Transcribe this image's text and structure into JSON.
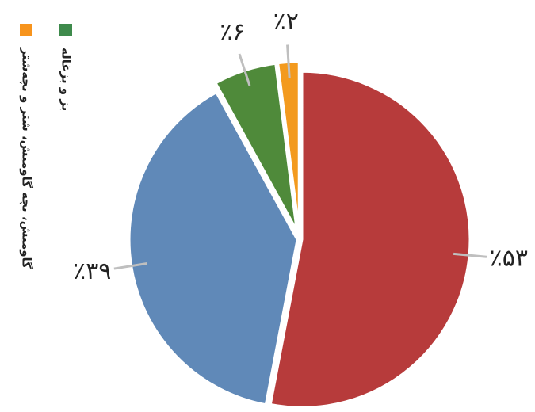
{
  "chart_data": {
    "type": "pie",
    "categories": [
      null,
      null,
      "بز و بزغاله",
      "گاومیش، بچه گاومیش، شتر و بچه‌شتر"
    ],
    "values": [
      53,
      39,
      6,
      2
    ],
    "value_labels": [
      "٪۵۳",
      "٪۳۹",
      "٪۶",
      "٪۲"
    ],
    "colors": [
      "#b73b3b",
      "#6089b8",
      "#4f8a3a",
      "#f39a1e"
    ],
    "legend_colors": [
      null,
      null,
      "#3e8a4c",
      "#f7941d"
    ],
    "exploded": [
      false,
      false,
      true,
      true
    ]
  }
}
